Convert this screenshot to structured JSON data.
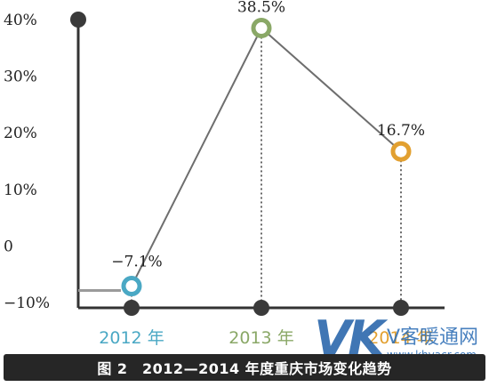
{
  "caption": "图 2　2012—2014 年度重庆市场变化趋势",
  "watermark": {
    "logo": "VK",
    "title": "V客暖通网",
    "url": "www.khvacr.com"
  },
  "colors": {
    "axis": "#333333",
    "line": "#6e6e6e",
    "c2012": "#4aa8c4",
    "c2013": "#8aa867",
    "c2014": "#e2a030",
    "dots": "#3a3a3a",
    "caption_bg": "#262626"
  },
  "chart_data": {
    "type": "line",
    "title": "",
    "xlabel": "",
    "ylabel": "",
    "categories": [
      "2012 年",
      "2013 年",
      "2014 年"
    ],
    "y_ticks": [
      "40%",
      "30%",
      "20%",
      "10%",
      "0",
      "−10%"
    ],
    "y_tick_values": [
      40,
      30,
      20,
      10,
      0,
      -10
    ],
    "ylim": [
      -10,
      40
    ],
    "grid": false,
    "series": [
      {
        "values": [
          -7.1,
          38.5,
          16.7
        ],
        "labels": [
          "−7.1%",
          "38.5%",
          "16.7%"
        ]
      }
    ]
  }
}
